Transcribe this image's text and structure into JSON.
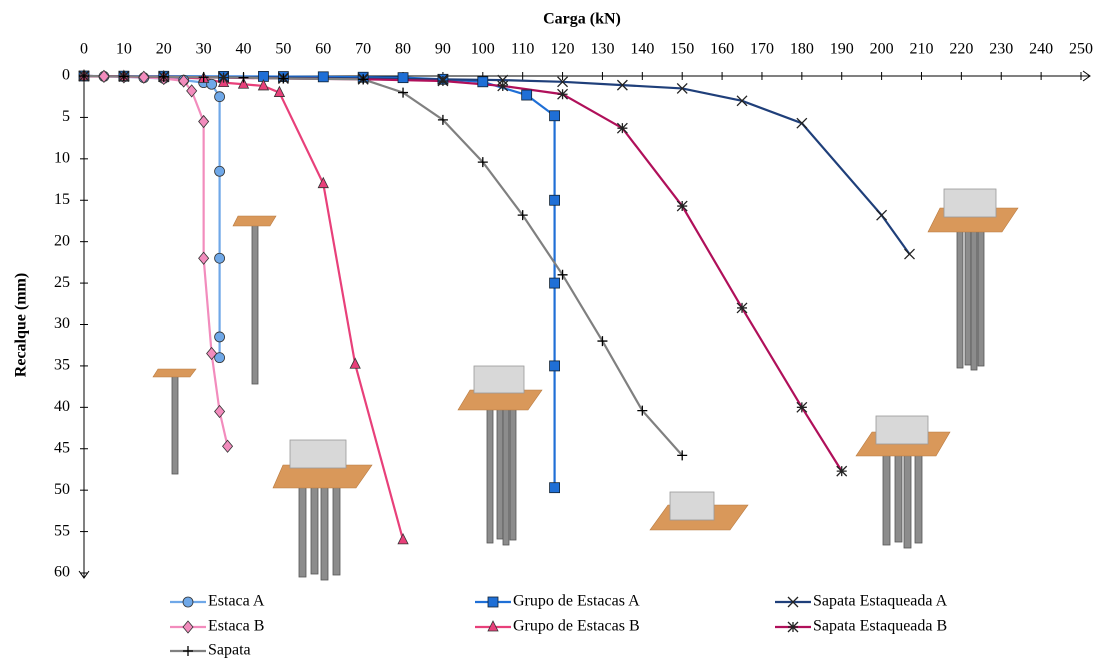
{
  "chart_data": {
    "type": "line",
    "x_label": "Carga (kN)",
    "y_label": "Recalque (mm)",
    "xlim": [
      0,
      250
    ],
    "xticks": [
      0,
      10,
      20,
      30,
      40,
      50,
      60,
      70,
      80,
      90,
      100,
      110,
      120,
      130,
      140,
      150,
      160,
      170,
      180,
      190,
      200,
      210,
      220,
      230,
      240,
      250
    ],
    "ylim": [
      0,
      60
    ],
    "yticks": [
      0,
      5,
      10,
      15,
      20,
      25,
      30,
      35,
      40,
      45,
      50,
      55,
      60
    ],
    "y_inverted": true,
    "x_axis_position": "top",
    "legend": "bottom",
    "series": [
      {
        "name": "Estaca A",
        "color": "#6fa8e8",
        "marker": "circle",
        "x": [
          0,
          5,
          10,
          15,
          20,
          25,
          30,
          32,
          34,
          34,
          34,
          34,
          34
        ],
        "values": [
          0,
          0.05,
          0.1,
          0.2,
          0.3,
          0.5,
          0.8,
          1.0,
          2.5,
          11.5,
          22,
          31.5,
          34
        ]
      },
      {
        "name": "Grupo de Estacas A",
        "color": "#1f6fd6",
        "marker": "square",
        "x": [
          0,
          10,
          20,
          35,
          45,
          50,
          60,
          70,
          80,
          90,
          100,
          111,
          118,
          118,
          118,
          118,
          118
        ],
        "values": [
          0,
          0.02,
          0.03,
          0.05,
          0.05,
          0.07,
          0.1,
          0.15,
          0.2,
          0.4,
          0.7,
          2.3,
          4.8,
          15,
          25,
          35,
          49.7
        ]
      },
      {
        "name": "Sapata Estaqueada A",
        "color": "#1f3f7a",
        "marker": "x",
        "x": [
          0,
          10,
          20,
          35,
          50,
          70,
          90,
          105,
          120,
          135,
          150,
          165,
          180,
          200,
          207
        ],
        "values": [
          0,
          0.05,
          0.1,
          0.15,
          0.2,
          0.3,
          0.4,
          0.5,
          0.7,
          1.1,
          1.5,
          3,
          5.7,
          16.8,
          21.5
        ]
      },
      {
        "name": "Estaca B",
        "color": "#f28cbd",
        "marker": "diamond",
        "x": [
          0,
          5,
          10,
          15,
          20,
          25,
          27,
          30,
          30,
          32,
          34,
          36
        ],
        "values": [
          0,
          0.05,
          0.1,
          0.15,
          0.3,
          0.6,
          1.8,
          5.5,
          22,
          33.5,
          40.5,
          44.7
        ]
      },
      {
        "name": "Grupo de Estacas B",
        "color": "#e8407a",
        "marker": "triangle",
        "x": [
          0,
          10,
          20,
          30,
          35,
          40,
          45,
          49,
          60,
          68,
          80
        ],
        "values": [
          0,
          0.05,
          0.1,
          0.3,
          0.8,
          1.0,
          1.2,
          2.0,
          13,
          34.8,
          56
        ]
      },
      {
        "name": "Sapata Estaqueada B",
        "color": "#b0105a",
        "marker": "asterisk",
        "x": [
          0,
          10,
          20,
          35,
          50,
          70,
          90,
          105,
          120,
          135,
          150,
          165,
          180,
          190
        ],
        "values": [
          0,
          0.05,
          0.1,
          0.2,
          0.3,
          0.4,
          0.6,
          1.2,
          2.2,
          6.3,
          15.7,
          28,
          40,
          47.7
        ]
      },
      {
        "name": "Sapata",
        "color": "#808080",
        "marker": "plus",
        "x": [
          0,
          10,
          20,
          30,
          40,
          50,
          70,
          80,
          90,
          100,
          110,
          120,
          130,
          140,
          150
        ],
        "values": [
          0,
          0.05,
          0.1,
          0.15,
          0.2,
          0.3,
          0.4,
          2,
          5.3,
          10.4,
          16.8,
          24,
          32,
          40.4,
          45.8
        ]
      }
    ]
  }
}
